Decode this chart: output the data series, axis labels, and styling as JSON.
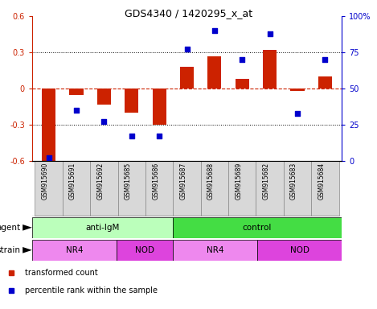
{
  "title": "GDS4340 / 1420295_x_at",
  "samples": [
    "GSM915690",
    "GSM915691",
    "GSM915692",
    "GSM915685",
    "GSM915686",
    "GSM915687",
    "GSM915688",
    "GSM915689",
    "GSM915682",
    "GSM915683",
    "GSM915684"
  ],
  "bar_values": [
    -0.6,
    -0.05,
    -0.13,
    -0.2,
    -0.3,
    0.18,
    0.27,
    0.08,
    0.32,
    -0.02,
    0.1
  ],
  "dot_values": [
    2,
    35,
    27,
    17,
    17,
    77,
    90,
    70,
    88,
    33,
    70
  ],
  "bar_color": "#cc2200",
  "dot_color": "#0000cc",
  "zero_line_color": "#cc2200",
  "ylim": [
    -0.6,
    0.6
  ],
  "y2lim": [
    0,
    100
  ],
  "yticks": [
    -0.6,
    -0.3,
    0.0,
    0.3,
    0.6
  ],
  "ytick_labels": [
    "-0.6",
    "-0.3",
    "0",
    "0.3",
    "0.6"
  ],
  "y2ticks": [
    0,
    25,
    50,
    75,
    100
  ],
  "y2tick_labels": [
    "0",
    "25",
    "50",
    "75",
    "100%"
  ],
  "agent_labels": [
    {
      "text": "anti-IgM",
      "start": 0,
      "end": 5,
      "color": "#bbffbb"
    },
    {
      "text": "control",
      "start": 5,
      "end": 11,
      "color": "#44dd44"
    }
  ],
  "strain_labels": [
    {
      "text": "NR4",
      "start": 0,
      "end": 3,
      "color": "#ee88ee"
    },
    {
      "text": "NOD",
      "start": 3,
      "end": 5,
      "color": "#dd44dd"
    },
    {
      "text": "NR4",
      "start": 5,
      "end": 8,
      "color": "#ee88ee"
    },
    {
      "text": "NOD",
      "start": 8,
      "end": 11,
      "color": "#dd44dd"
    }
  ],
  "legend_items": [
    {
      "label": "transformed count",
      "color": "#cc2200"
    },
    {
      "label": "percentile rank within the sample",
      "color": "#0000cc"
    }
  ],
  "sample_box_color": "#d8d8d8",
  "sample_box_edge": "#888888"
}
